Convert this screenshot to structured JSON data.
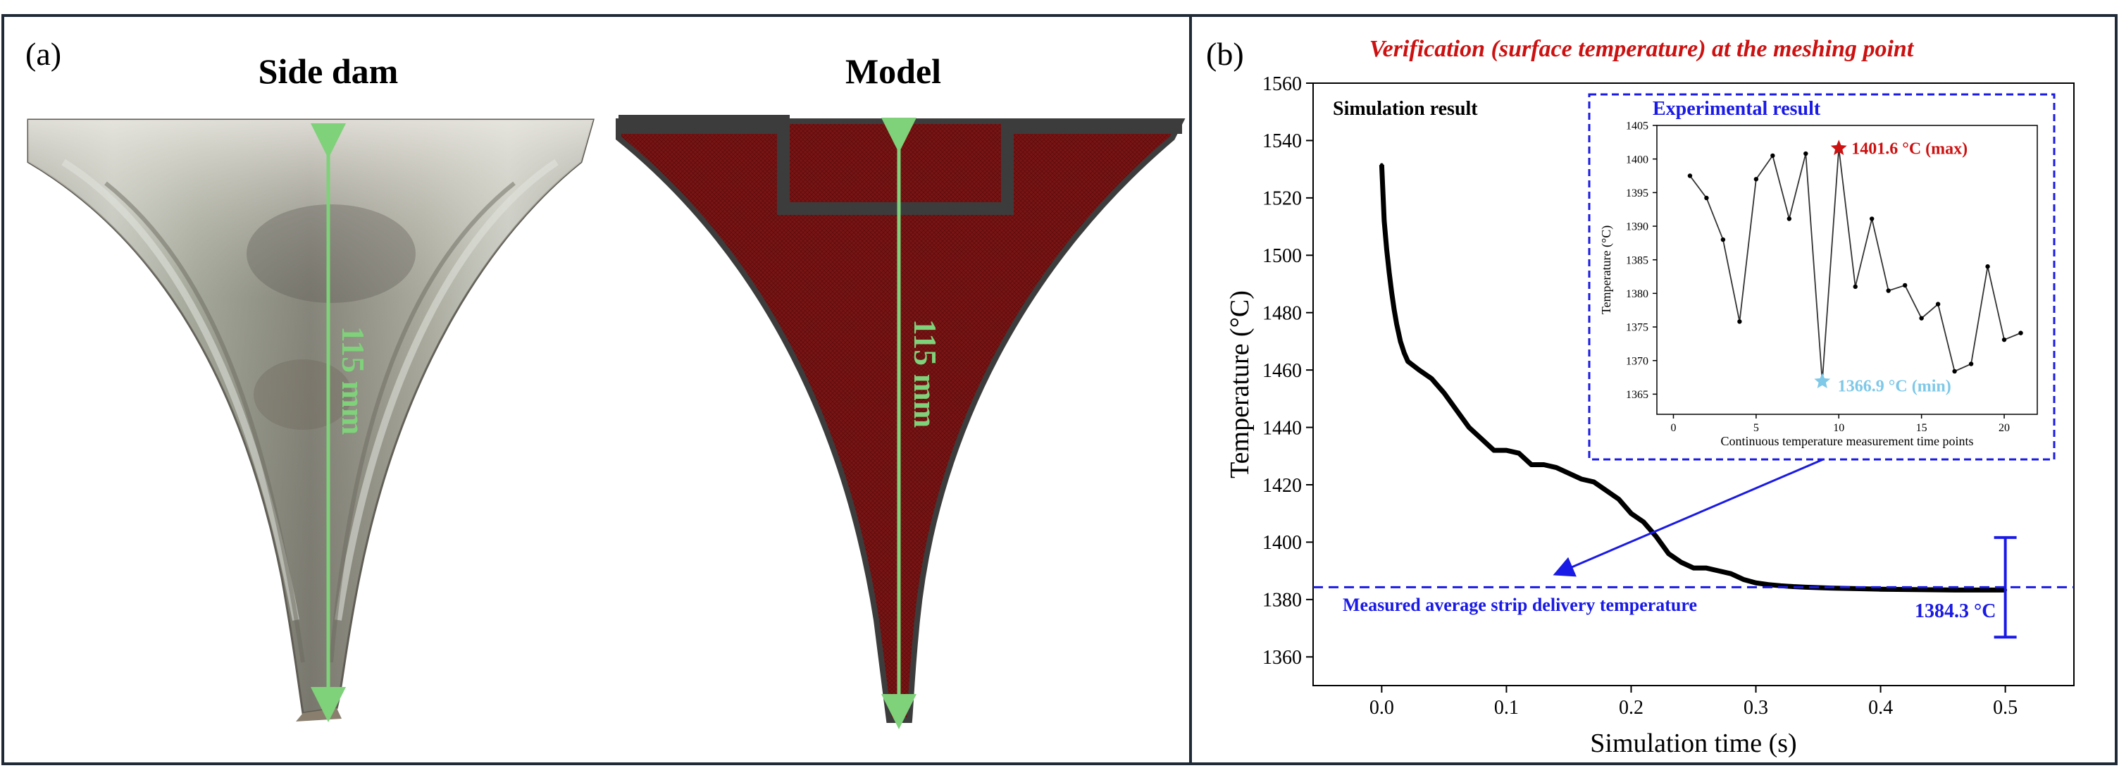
{
  "panel_a": {
    "label": "(a)",
    "photo_title": "Side dam",
    "model_title": "Model",
    "photo_dimension": "115 mm",
    "model_dimension": "115 mm",
    "colors": {
      "model_fill": "#7a1414",
      "model_frame": "#3c3c3c",
      "dimension": "#7fd17a"
    }
  },
  "panel_b": {
    "label": "(b)",
    "title": "Verification (surface temperature) at the meshing point",
    "simulation_label": "Simulation result",
    "measured_label": "Measured average strip delivery temperature",
    "measured_value_label": "1384.3 °C",
    "colors": {
      "title": "#cc1111",
      "blue": "#1a1ae6",
      "curve": "#000000"
    }
  },
  "chart_data": [
    {
      "type": "line",
      "title": "Verification (surface temperature) at the meshing point",
      "xlabel": "Simulation time (s)",
      "ylabel": "Temperature (°C)",
      "xlim": [
        -0.055,
        0.555
      ],
      "ylim": [
        1350,
        1560
      ],
      "xticks": [
        0.0,
        0.1,
        0.2,
        0.3,
        0.4,
        0.5
      ],
      "xtick_labels": [
        "0.0",
        "0.1",
        "0.2",
        "0.3",
        "0.4",
        "0.5"
      ],
      "yticks": [
        1360,
        1380,
        1400,
        1420,
        1440,
        1460,
        1480,
        1500,
        1520,
        1540,
        1560
      ],
      "ytick_labels": [
        "1360",
        "1380",
        "1400",
        "1420",
        "1440",
        "1460",
        "1480",
        "1500",
        "1520",
        "1540",
        "1560"
      ],
      "series": [
        {
          "name": "Simulation result",
          "x": [
            0.0,
            0.002,
            0.004,
            0.006,
            0.008,
            0.01,
            0.012,
            0.015,
            0.018,
            0.021,
            0.024,
            0.03,
            0.04,
            0.05,
            0.06,
            0.07,
            0.08,
            0.09,
            0.1,
            0.11,
            0.12,
            0.13,
            0.14,
            0.15,
            0.16,
            0.17,
            0.18,
            0.19,
            0.2,
            0.21,
            0.22,
            0.23,
            0.24,
            0.25,
            0.26,
            0.27,
            0.28,
            0.29,
            0.3,
            0.31,
            0.32,
            0.33,
            0.34,
            0.36,
            0.38,
            0.4,
            0.42,
            0.44,
            0.46,
            0.48,
            0.5
          ],
          "values": [
            1531.5,
            1512,
            1502,
            1494,
            1487,
            1481,
            1476,
            1470,
            1466,
            1463,
            1462,
            1460,
            1457,
            1452,
            1446,
            1440,
            1436,
            1432,
            1432,
            1431,
            1427,
            1427,
            1426,
            1424,
            1422,
            1421,
            1418,
            1415,
            1410,
            1407,
            1402,
            1396,
            1393,
            1391,
            1391,
            1390,
            1389,
            1387,
            1385.8,
            1385.2,
            1384.8,
            1384.5,
            1384.3,
            1384.0,
            1383.8,
            1383.6,
            1383.5,
            1383.4,
            1383.3,
            1383.3,
            1383.3
          ]
        }
      ],
      "reference_line": {
        "y": 1384.3,
        "label": "Measured average strip delivery temperature"
      },
      "error_bar": {
        "x": 0.5,
        "y": 1384.3,
        "low": 1366.9,
        "high": 1401.6,
        "label": "1384.3 °C"
      },
      "annotations": [
        "Simulation result"
      ]
    },
    {
      "type": "line",
      "title": "Experimental result",
      "xlabel": "Continuous temperature measurement time points",
      "ylabel": "Temperature (°C)",
      "xlim": [
        -1,
        22
      ],
      "ylim": [
        1362,
        1405
      ],
      "xticks": [
        0,
        5,
        10,
        15,
        20
      ],
      "xtick_labels": [
        "0",
        "5",
        "10",
        "15",
        "20"
      ],
      "yticks": [
        1365,
        1370,
        1375,
        1380,
        1385,
        1390,
        1395,
        1400,
        1405
      ],
      "ytick_labels": [
        "1365",
        "1370",
        "1375",
        "1380",
        "1385",
        "1390",
        "1395",
        "1400",
        "1405"
      ],
      "series": [
        {
          "name": "Experimental result",
          "x": [
            1,
            2,
            3,
            4,
            5,
            6,
            7,
            8,
            9,
            10,
            11,
            12,
            13,
            14,
            15,
            16,
            17,
            18,
            19,
            20,
            21
          ],
          "values": [
            1397.5,
            1394.2,
            1388.0,
            1375.8,
            1397.0,
            1400.5,
            1391.1,
            1400.8,
            1366.9,
            1401.6,
            1381.0,
            1391.1,
            1380.4,
            1381.2,
            1376.3,
            1378.4,
            1368.4,
            1369.5,
            1384.0,
            1373.1,
            1374.1
          ]
        }
      ],
      "max_point": {
        "x": 10,
        "y": 1401.6,
        "label": "1401.6 °C (max)",
        "color": "#cc1111"
      },
      "min_point": {
        "x": 9,
        "y": 1366.9,
        "label": "1366.9 °C (min)",
        "color": "#7ec8e8"
      }
    }
  ]
}
